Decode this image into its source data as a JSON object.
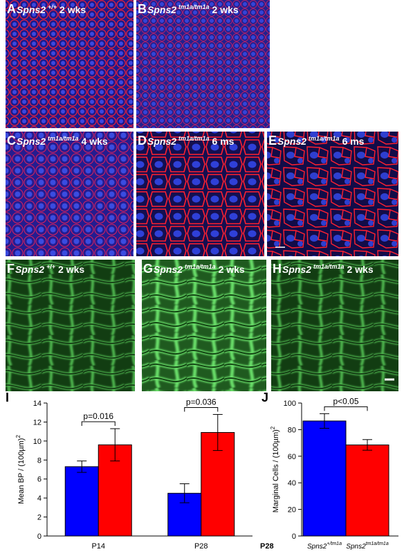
{
  "panels": [
    {
      "letter": "A",
      "gene": "Spns2",
      "allele": "+/+",
      "age": "2 wks"
    },
    {
      "letter": "B",
      "gene": "Spns2",
      "allele": "tm1a/tm1a",
      "age": "2 wks"
    },
    {
      "letter": "C",
      "gene": "Spns2",
      "allele": "tm1a/tm1a",
      "age": "4 wks"
    },
    {
      "letter": "D",
      "gene": "Spns2",
      "allele": "tm1a/tm1a",
      "age": "6 ms"
    },
    {
      "letter": "E",
      "gene": "Spns2",
      "allele": "tm1a/tm1a",
      "age": "6 ms"
    },
    {
      "letter": "F",
      "gene": "Spns2",
      "allele": "+/+",
      "age": "2 wks"
    },
    {
      "letter": "G",
      "gene": "Spns2",
      "allele": "tm1a/tm1a",
      "age": "2 wks"
    },
    {
      "letter": "H",
      "gene": "Spns2",
      "allele": "tm1a/tm1a",
      "age": "2 wks"
    }
  ],
  "chart_data": [
    {
      "type": "bar",
      "panel_label": "I",
      "ylabel": "Mean BP / (100µm)",
      "ylabel_sup": "2",
      "categories": [
        "P14",
        "P28"
      ],
      "series": [
        {
          "color": "#0000ff",
          "values": [
            7.3,
            4.5
          ],
          "errors": [
            0.6,
            1.0
          ]
        },
        {
          "color": "#ff0000",
          "values": [
            9.6,
            10.9
          ],
          "errors": [
            1.7,
            1.9
          ]
        }
      ],
      "ylim": [
        0,
        14
      ],
      "yticks": [
        0,
        2,
        4,
        6,
        8,
        10,
        12,
        14
      ],
      "annotations": [
        "p=0.016",
        "p=0.036"
      ]
    },
    {
      "type": "bar",
      "panel_label": "J",
      "ylabel": "Marginal Cells / (100µm)",
      "ylabel_sup": "2",
      "xlabel": "P28",
      "categories": [
        {
          "gene": "Spns2",
          "allele": "+/tm1a"
        },
        {
          "gene": "Spns2",
          "allele": "tm1a/tm1a"
        }
      ],
      "values": [
        86.5,
        68.5
      ],
      "errors": [
        5.5,
        4.0
      ],
      "colors": [
        "#0000ff",
        "#ff0000"
      ],
      "ylim": [
        0,
        100
      ],
      "yticks": [
        0,
        20,
        40,
        60,
        80,
        100
      ],
      "annotations": [
        "p<0.05"
      ]
    }
  ]
}
